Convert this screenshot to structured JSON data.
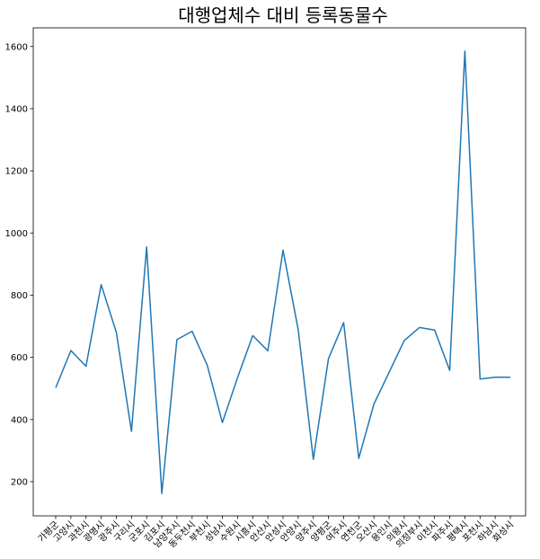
{
  "chart_data": {
    "type": "line",
    "title": "대행업체수 대비 등록동물수",
    "xlabel": "",
    "ylabel": "",
    "ylim": [
      90,
      1660
    ],
    "yticks": [
      200,
      400,
      600,
      800,
      1000,
      1200,
      1400,
      1600
    ],
    "ytick_labels": [
      "200",
      "400",
      "600",
      "800",
      "1000",
      "1200",
      "1400",
      "1600"
    ],
    "grid": false,
    "line_color": "#1f77b4",
    "categories": [
      "가평군",
      "고양시",
      "과천시",
      "광명시",
      "광주시",
      "구리시",
      "군포시",
      "김포시",
      "남양주시",
      "동두천시",
      "부천시",
      "성남시",
      "수원시",
      "시흥시",
      "안산시",
      "안성시",
      "안양시",
      "양주시",
      "양평군",
      "여주시",
      "연천군",
      "오산시",
      "용인시",
      "의왕시",
      "의정부시",
      "이천시",
      "파주시",
      "평택시",
      "포천시",
      "하남시",
      "화성시"
    ],
    "series": [
      {
        "values": [
          502,
          622,
          571,
          834,
          680,
          362,
          955,
          162,
          657,
          684,
          574,
          390,
          535,
          670,
          621,
          945,
          689,
          272,
          596,
          712,
          275,
          450,
          552,
          654,
          696,
          688,
          558,
          1585,
          530,
          536,
          536
        ]
      }
    ]
  }
}
